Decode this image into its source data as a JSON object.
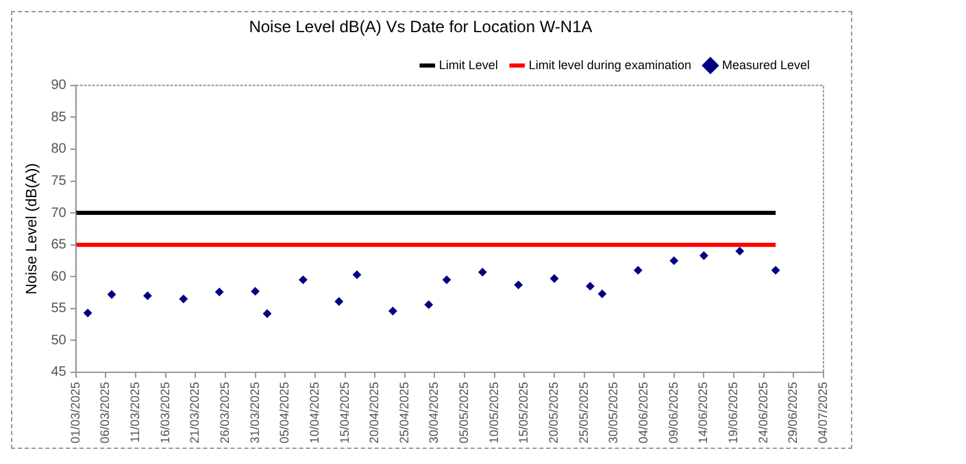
{
  "chart_data": {
    "type": "scatter",
    "title": "Noise Level dB(A) Vs Date for Location W-N1A",
    "ylabel": "Noise Level (dB(A))",
    "series": [
      {
        "name": "Limit Level",
        "type": "line",
        "color": "#000000",
        "x": [
          "2025-03-01",
          "2025-06-26"
        ],
        "values": [
          70,
          70
        ],
        "marker": "none"
      },
      {
        "name": "Limit level during examination",
        "type": "line",
        "color": "#ff0000",
        "x": [
          "2025-03-01",
          "2025-06-26"
        ],
        "values": [
          65,
          65
        ],
        "marker": "none"
      },
      {
        "name": "Measured Level",
        "color": "#000080",
        "marker": "diamond",
        "x": [
          "2025-03-03",
          "2025-03-07",
          "2025-03-13",
          "2025-03-19",
          "2025-03-25",
          "2025-03-31",
          "2025-04-02",
          "2025-04-08",
          "2025-04-14",
          "2025-04-17",
          "2025-04-23",
          "2025-04-29",
          "2025-05-02",
          "2025-05-08",
          "2025-05-14",
          "2025-05-20",
          "2025-05-26",
          "2025-05-28",
          "2025-06-03",
          "2025-06-09",
          "2025-06-14",
          "2025-06-20",
          "2025-06-26"
        ],
        "values": [
          54.3,
          57.2,
          57.0,
          56.5,
          57.6,
          57.7,
          54.2,
          59.5,
          56.1,
          60.3,
          54.6,
          55.6,
          59.5,
          60.7,
          58.7,
          59.7,
          58.5,
          57.3,
          61.0,
          62.5,
          63.3,
          64.0,
          61.0
        ]
      }
    ],
    "xlim": [
      "2025-03-01",
      "2025-07-04"
    ],
    "xticks": [
      {
        "value": "2025-03-01",
        "label": "01/03/2025"
      },
      {
        "value": "2025-03-06",
        "label": "06/03/2025"
      },
      {
        "value": "2025-03-11",
        "label": "11/03/2025"
      },
      {
        "value": "2025-03-16",
        "label": "16/03/2025"
      },
      {
        "value": "2025-03-21",
        "label": "21/03/2025"
      },
      {
        "value": "2025-03-26",
        "label": "26/03/2025"
      },
      {
        "value": "2025-03-31",
        "label": "31/03/2025"
      },
      {
        "value": "2025-04-05",
        "label": "05/04/2025"
      },
      {
        "value": "2025-04-10",
        "label": "10/04/2025"
      },
      {
        "value": "2025-04-15",
        "label": "15/04/2025"
      },
      {
        "value": "2025-04-20",
        "label": "20/04/2025"
      },
      {
        "value": "2025-04-25",
        "label": "25/04/2025"
      },
      {
        "value": "2025-04-30",
        "label": "30/04/2025"
      },
      {
        "value": "2025-05-05",
        "label": "05/05/2025"
      },
      {
        "value": "2025-05-10",
        "label": "10/05/2025"
      },
      {
        "value": "2025-05-15",
        "label": "15/05/2025"
      },
      {
        "value": "2025-05-20",
        "label": "20/05/2025"
      },
      {
        "value": "2025-05-25",
        "label": "25/05/2025"
      },
      {
        "value": "2025-05-30",
        "label": "30/05/2025"
      },
      {
        "value": "2025-06-04",
        "label": "04/06/2025"
      },
      {
        "value": "2025-06-09",
        "label": "09/06/2025"
      },
      {
        "value": "2025-06-14",
        "label": "14/06/2025"
      },
      {
        "value": "2025-06-19",
        "label": "19/06/2025"
      },
      {
        "value": "2025-06-24",
        "label": "24/06/2025"
      },
      {
        "value": "2025-06-29",
        "label": "29/06/2025"
      },
      {
        "value": "2025-07-04",
        "label": "04/07/2025"
      }
    ],
    "ylim": [
      45,
      90
    ],
    "yticks": [
      45,
      50,
      55,
      60,
      65,
      70,
      75,
      80,
      85,
      90
    ],
    "grid": false,
    "legend": "top right"
  }
}
